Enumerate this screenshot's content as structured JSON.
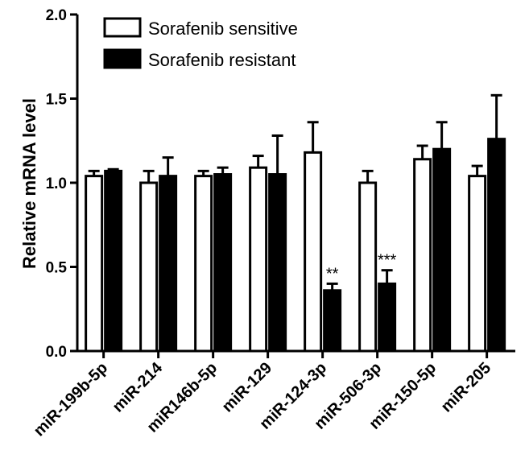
{
  "chart_data": {
    "type": "bar",
    "title": "",
    "xlabel": "",
    "ylabel": "Relative mRNA level",
    "ylim": [
      0,
      2.0
    ],
    "yticks": [
      "0.0",
      "0.5",
      "1.0",
      "1.5",
      "2.0"
    ],
    "grid": false,
    "legend_position": "top-left",
    "categories": [
      "miR-199b-5p",
      "miR-214",
      "miR146b-5p",
      "miR-129",
      "miR-124-3p",
      "miR-506-3p",
      "miR-150-5p",
      "miR-205"
    ],
    "series": [
      {
        "name": "Sorafenib sensitive",
        "fill": "#ffffff",
        "values": [
          1.04,
          1.0,
          1.04,
          1.09,
          1.18,
          1.0,
          1.14,
          1.04
        ],
        "error_upper": [
          0.03,
          0.07,
          0.03,
          0.07,
          0.18,
          0.07,
          0.08,
          0.06
        ]
      },
      {
        "name": "Sorafenib resistant",
        "fill": "#000000",
        "values": [
          1.07,
          1.04,
          1.05,
          1.05,
          0.36,
          0.4,
          1.2,
          1.26
        ],
        "error_upper": [
          0.01,
          0.11,
          0.04,
          0.23,
          0.04,
          0.08,
          0.16,
          0.26
        ]
      }
    ],
    "annotations": [
      {
        "category": "miR-124-3p",
        "series": "Sorafenib resistant",
        "text": "**"
      },
      {
        "category": "miR-506-3p",
        "series": "Sorafenib resistant",
        "text": "***"
      }
    ]
  }
}
